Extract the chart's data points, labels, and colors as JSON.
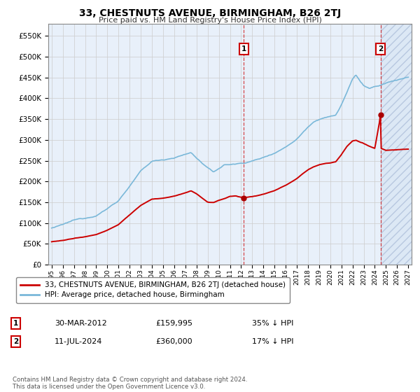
{
  "title": "33, CHESTNUTS AVENUE, BIRMINGHAM, B26 2TJ",
  "subtitle": "Price paid vs. HM Land Registry's House Price Index (HPI)",
  "hpi_label": "HPI: Average price, detached house, Birmingham",
  "property_label": "33, CHESTNUTS AVENUE, BIRMINGHAM, B26 2TJ (detached house)",
  "hpi_color": "#7ab8d9",
  "property_color": "#cc0000",
  "marker_color": "#aa0000",
  "vline_color": "#cc0000",
  "grid_color": "#cccccc",
  "bg_color": "#e8f0fa",
  "hatch_bg_color": "#dce8f5",
  "ylim": [
    0,
    580000
  ],
  "ytick_values": [
    0,
    50000,
    100000,
    150000,
    200000,
    250000,
    300000,
    350000,
    400000,
    450000,
    500000,
    550000
  ],
  "x_start_year": 1995,
  "x_end_year": 2027,
  "sale1_year": 2012.25,
  "sale1_price": 159995,
  "sale1_date": "30-MAR-2012",
  "sale1_price_str": "£159,995",
  "sale1_hpi_str": "35% ↓ HPI",
  "sale2_year": 2024.53,
  "sale2_price": 360000,
  "sale2_date": "11-JUL-2024",
  "sale2_price_str": "£360,000",
  "sale2_hpi_str": "17% ↓ HPI",
  "footer": "Contains HM Land Registry data © Crown copyright and database right 2024.\nThis data is licensed under the Open Government Licence v3.0.",
  "legend_box_color": "#ffffff",
  "legend_border_color": "#888888"
}
